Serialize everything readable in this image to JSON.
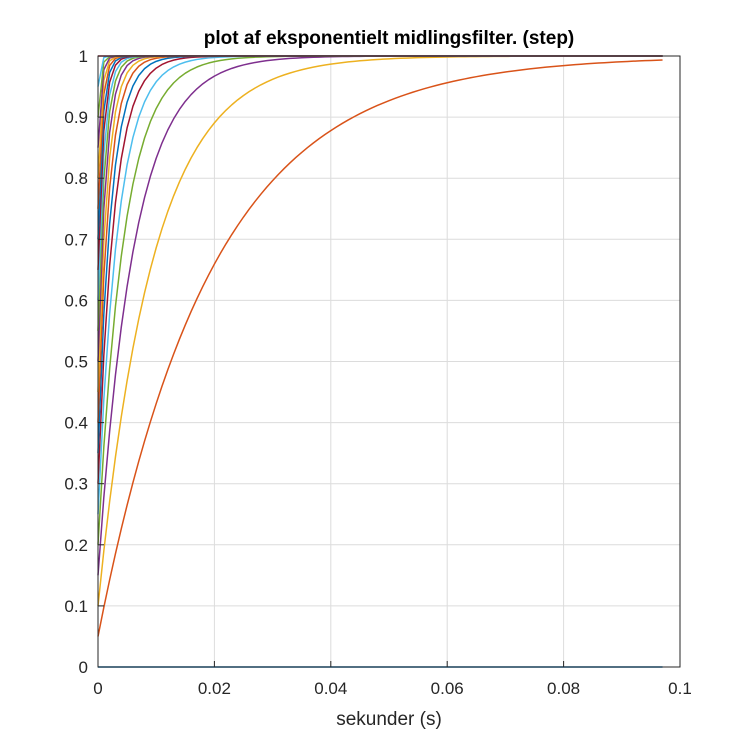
{
  "chart_data": {
    "type": "line",
    "title": "plot af eksponentielt midlingsfilter. (step)",
    "xlabel": "sekunder (s)",
    "ylabel": "",
    "xlim": [
      0,
      0.1
    ],
    "ylim": [
      0,
      1
    ],
    "x_ticks": [
      "0",
      "0.02",
      "0.04",
      "0.06",
      "0.08",
      "0.1"
    ],
    "y_ticks": [
      "0",
      "0.1",
      "0.2",
      "0.3",
      "0.4",
      "0.5",
      "0.6",
      "0.7",
      "0.8",
      "0.9",
      "1"
    ],
    "grid": true,
    "legend": "none",
    "sample_period": 0.001,
    "x_end": 0.097,
    "series": [
      {
        "alpha": 0,
        "color": "#0072BD"
      },
      {
        "alpha": 0.05,
        "color": "#D95319"
      },
      {
        "alpha": 0.1,
        "color": "#EDB120"
      },
      {
        "alpha": 0.15,
        "color": "#7E2F8E"
      },
      {
        "alpha": 0.2,
        "color": "#77AC30"
      },
      {
        "alpha": 0.25,
        "color": "#4DBEEE"
      },
      {
        "alpha": 0.3,
        "color": "#A2142F"
      },
      {
        "alpha": 0.35,
        "color": "#0072BD"
      },
      {
        "alpha": 0.4,
        "color": "#D95319"
      },
      {
        "alpha": 0.45,
        "color": "#EDB120"
      },
      {
        "alpha": 0.5,
        "color": "#7E2F8E"
      },
      {
        "alpha": 0.55,
        "color": "#77AC30"
      },
      {
        "alpha": 0.6,
        "color": "#4DBEEE"
      },
      {
        "alpha": 0.65,
        "color": "#A2142F"
      },
      {
        "alpha": 0.7,
        "color": "#0072BD"
      },
      {
        "alpha": 0.75,
        "color": "#D95319"
      },
      {
        "alpha": 0.8,
        "color": "#EDB120"
      },
      {
        "alpha": 0.85,
        "color": "#7E2F8E"
      },
      {
        "alpha": 0.9,
        "color": "#77AC30"
      },
      {
        "alpha": 0.95,
        "color": "#4DBEEE"
      },
      {
        "alpha": 1,
        "color": "#A2142F"
      }
    ]
  }
}
